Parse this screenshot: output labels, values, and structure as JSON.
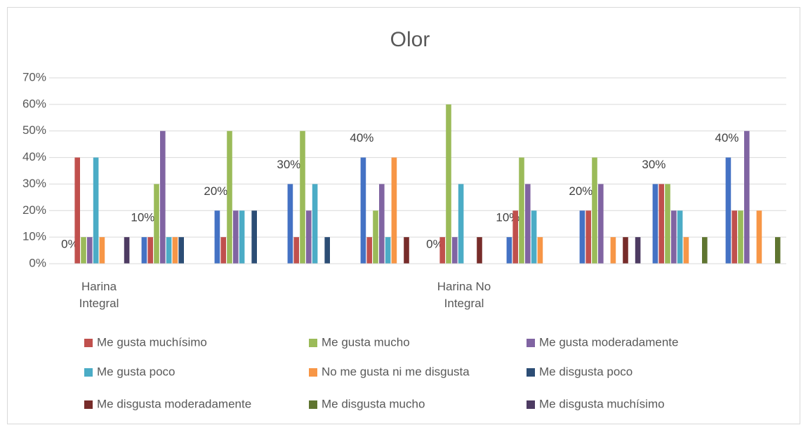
{
  "chart_data": {
    "type": "bar",
    "title": "Olor",
    "categories": [
      "Harina Integral",
      null,
      null,
      null,
      null,
      "Harina No Integral",
      null,
      null,
      null,
      null
    ],
    "ylim": [
      0,
      70
    ],
    "yticks": [
      {
        "value": 0,
        "label": "0%"
      },
      {
        "value": 10,
        "label": "10%"
      },
      {
        "value": 20,
        "label": "20%"
      },
      {
        "value": 30,
        "label": "30%"
      },
      {
        "value": 40,
        "label": "40%"
      },
      {
        "value": 50,
        "label": "50%"
      },
      {
        "value": 60,
        "label": "60%"
      },
      {
        "value": 70,
        "label": "70%"
      }
    ],
    "grid": true,
    "legend": "bottom",
    "series": [
      {
        "color": "#4472c4",
        "values": [
          0,
          10,
          20,
          30,
          40,
          0,
          10,
          20,
          30,
          40
        ],
        "value_labels": [
          "0%",
          "10%",
          "20%",
          "30%",
          "40%",
          "0%",
          "10%",
          "20%",
          "30%",
          "40%"
        ]
      },
      {
        "name": "Me gusta muchísimo",
        "color": "#c0504d",
        "values": [
          40,
          10,
          10,
          10,
          10,
          10,
          20,
          20,
          30,
          20
        ]
      },
      {
        "name": "Me gusta mucho",
        "color": "#9bbb59",
        "values": [
          10,
          30,
          50,
          50,
          20,
          60,
          40,
          40,
          30,
          20
        ]
      },
      {
        "name": "Me gusta moderadamente",
        "color": "#8064a2",
        "values": [
          10,
          50,
          20,
          20,
          30,
          10,
          30,
          30,
          20,
          50
        ]
      },
      {
        "name": "Me gusta poco",
        "color": "#4bacc6",
        "values": [
          40,
          10,
          20,
          30,
          10,
          30,
          20,
          0,
          20,
          0
        ]
      },
      {
        "name": "No me gusta ni me disgusta",
        "color": "#f79646",
        "values": [
          10,
          10,
          0,
          0,
          40,
          0,
          10,
          10,
          10,
          20
        ]
      },
      {
        "name": "Me disgusta poco",
        "color": "#2c4d75",
        "values": [
          0,
          10,
          20,
          10,
          0,
          0,
          0,
          0,
          0,
          0
        ]
      },
      {
        "name": "Me disgusta moderadamente",
        "color": "#772c2a",
        "values": [
          0,
          0,
          0,
          0,
          10,
          10,
          0,
          10,
          0,
          0
        ]
      },
      {
        "name": "Me disgusta mucho",
        "color": "#5f7530",
        "values": [
          0,
          0,
          0,
          0,
          0,
          0,
          0,
          0,
          10,
          10
        ]
      },
      {
        "name": "Me disgusta muchísimo",
        "color": "#4d3b62",
        "values": [
          10,
          0,
          0,
          0,
          0,
          0,
          0,
          10,
          0,
          0
        ]
      }
    ]
  }
}
